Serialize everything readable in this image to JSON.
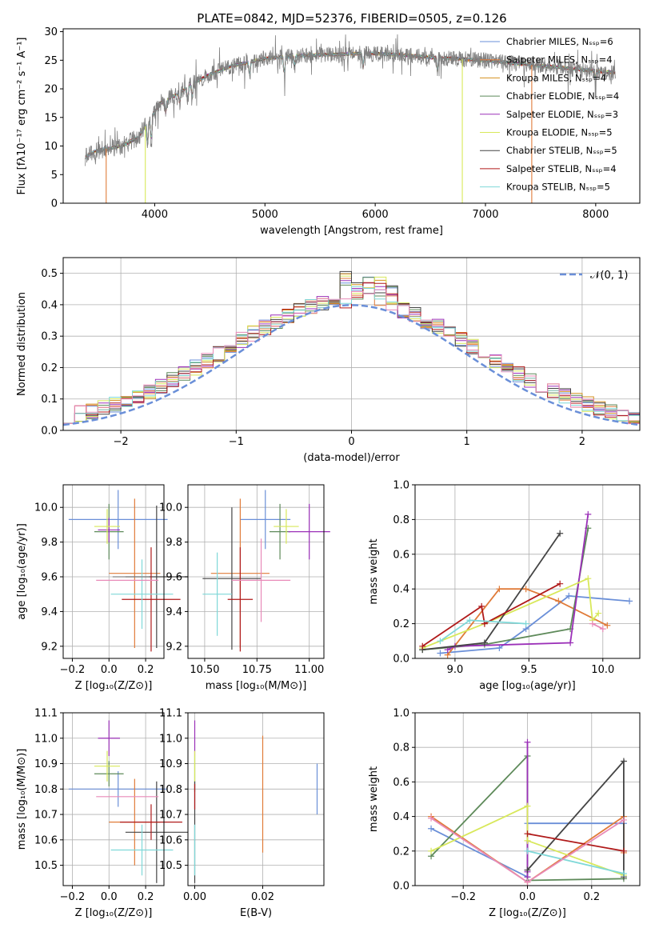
{
  "figure": {
    "title": "PLATE=0842, MJD=52376, FIBERID=0505, z=0.126"
  },
  "chart_data": [
    {
      "id": "spectrum",
      "type": "line",
      "xlabel": "wavelength [Angstrom, rest frame]",
      "ylabel": "Flux [fλ10⁻¹⁷ erg cm⁻² s⁻¹ A⁻¹]",
      "xlim": [
        3170,
        8400
      ],
      "ylim": [
        0,
        30.5
      ],
      "xticks": [
        4000,
        5000,
        6000,
        7000,
        8000
      ],
      "yticks": [
        0,
        5,
        10,
        15,
        20,
        25,
        30
      ],
      "grid": false,
      "legend": "upper right",
      "series": [
        {
          "name": "Chabrier MILES, Nₛₛₚ=6",
          "color": "#6a8fd8"
        },
        {
          "name": "Salpeter MILES, Nₛₛₚ=4",
          "color": "#e07b39"
        },
        {
          "name": "Kroupa MILES, Nₛₛₚ=4",
          "color": "#d4901e"
        },
        {
          "name": "Chabrier ELODIE, Nₛₛₚ=4",
          "color": "#5e8a5a"
        },
        {
          "name": "Salpeter ELODIE, Nₛₛₚ=3",
          "color": "#9b30b8"
        },
        {
          "name": "Kroupa ELODIE, Nₛₛₚ=5",
          "color": "#d8e85a"
        },
        {
          "name": "Chabrier STELIB, Nₛₛₚ=5",
          "color": "#444444"
        },
        {
          "name": "Salpeter STELIB, Nₛₛₚ=4",
          "color": "#b01a1a"
        },
        {
          "name": "Kroupa STELIB, Nₛₛₚ=5",
          "color": "#7fd8d8"
        }
      ],
      "data_color": "#808080",
      "continuum": [
        [
          3370,
          8
        ],
        [
          3450,
          9
        ],
        [
          3550,
          9.5
        ],
        [
          3700,
          10
        ],
        [
          3850,
          11.5
        ],
        [
          3950,
          14.5
        ],
        [
          4050,
          17.5
        ],
        [
          4200,
          19
        ],
        [
          4350,
          21
        ],
        [
          4500,
          22.5
        ],
        [
          4700,
          24
        ],
        [
          5000,
          25.3
        ],
        [
          5300,
          25.8
        ],
        [
          5600,
          26
        ],
        [
          5900,
          26.2
        ],
        [
          6200,
          26
        ],
        [
          6500,
          25.5
        ],
        [
          6800,
          25.2
        ],
        [
          7100,
          24.8
        ],
        [
          7400,
          24.2
        ],
        [
          7700,
          23.7
        ],
        [
          8000,
          23.1
        ],
        [
          8180,
          22.8
        ]
      ],
      "absorption_lines": [
        [
          3934,
          5
        ],
        [
          3969,
          5.5
        ],
        [
          4102,
          3
        ],
        [
          4227,
          2
        ],
        [
          4300,
          3
        ],
        [
          4340,
          3
        ],
        [
          4861,
          3
        ],
        [
          5175,
          4
        ],
        [
          5270,
          2
        ],
        [
          5890,
          3
        ],
        [
          6563,
          3
        ],
        [
          8000,
          1.5
        ]
      ],
      "drop_lines": [
        [
          3560,
          "#e07b39"
        ],
        [
          3915,
          "#d8e85a"
        ],
        [
          6790,
          "#d8e85a"
        ],
        [
          7420,
          "#e07b39"
        ]
      ]
    },
    {
      "id": "residual-histogram",
      "type": "line",
      "xlabel": "(data-model)/error",
      "ylabel": "Normed distribution",
      "xlim": [
        -2.5,
        2.5
      ],
      "ylim": [
        0,
        0.55
      ],
      "xticks": [
        -2,
        -1,
        0,
        1,
        2
      ],
      "yticks": [
        0.0,
        0.1,
        0.2,
        0.3,
        0.4,
        0.5
      ],
      "grid": true,
      "legend": "upper right",
      "legend_label": "𝒩(0, 1)",
      "reference_color": "#6a8fd8",
      "bin_width": 0.1
    },
    {
      "id": "age-vs-metallicity",
      "type": "scatter",
      "xlabel": "Z [log₁₀(Z/Z⊙)]",
      "ylabel": "age  [log₁₀(age/yr)]",
      "xlim": [
        -0.25,
        0.3
      ],
      "ylim": [
        9.13,
        10.13
      ],
      "xticks": [
        -0.2,
        0.0,
        0.2
      ],
      "yticks": [
        9.2,
        9.4,
        9.6,
        9.8,
        10.0
      ],
      "grid": true,
      "points": [
        {
          "x": 0.05,
          "y": 9.93,
          "xerr": 0.27,
          "yerr": 0.17,
          "color": "#6a8fd8"
        },
        {
          "x": 0.14,
          "y": 9.62,
          "xerr": 0.14,
          "yerr": 0.43,
          "color": "#e07b39"
        },
        {
          "x": 0.0,
          "y": 9.86,
          "xerr": 0.08,
          "yerr": 0.16,
          "color": "#5e8a5a"
        },
        {
          "x": 0.0,
          "y": 9.87,
          "xerr": 0.06,
          "yerr": 0.07,
          "color": "#9b30b8"
        },
        {
          "x": -0.01,
          "y": 9.89,
          "xerr": 0.07,
          "yerr": 0.1,
          "color": "#d8e85a"
        },
        {
          "x": 0.26,
          "y": 9.6,
          "xerr": 0.17,
          "yerr": 0.41,
          "color": "#444444"
        },
        {
          "x": 0.23,
          "y": 9.47,
          "xerr": 0.16,
          "yerr": 0.3,
          "color": "#b01a1a"
        },
        {
          "x": 0.18,
          "y": 9.5,
          "xerr": 0.17,
          "yerr": 0.2,
          "color": "#7fd8d8"
        },
        {
          "x": 0.1,
          "y": 9.58,
          "xerr": 0.17,
          "yerr": 0.0,
          "color": "#e88ab8"
        },
        {
          "x": 0.12,
          "y": 9.6,
          "xerr": 0.1,
          "yerr": 0.0,
          "color": "#888888"
        }
      ]
    },
    {
      "id": "age-vs-mass",
      "type": "scatter",
      "xlabel": "mass [log₁₀(M/M⊙)]",
      "ylabel": "",
      "xlim": [
        10.42,
        11.07
      ],
      "ylim": [
        9.13,
        10.13
      ],
      "xticks": [
        10.5,
        10.75,
        11.0
      ],
      "yticks": [
        9.2,
        9.4,
        9.6,
        9.8,
        10.0
      ],
      "grid": true,
      "points": [
        {
          "x": 10.79,
          "y": 9.93,
          "xerr": 0.12,
          "yerr": 0.17,
          "color": "#6a8fd8"
        },
        {
          "x": 10.67,
          "y": 9.62,
          "xerr": 0.14,
          "yerr": 0.43,
          "color": "#e07b39"
        },
        {
          "x": 10.86,
          "y": 9.86,
          "xerr": 0.05,
          "yerr": 0.16,
          "color": "#5e8a5a"
        },
        {
          "x": 11.0,
          "y": 9.86,
          "xerr": 0.1,
          "yerr": 0.16,
          "color": "#9b30b8"
        },
        {
          "x": 10.89,
          "y": 9.89,
          "xerr": 0.06,
          "yerr": 0.1,
          "color": "#d8e85a"
        },
        {
          "x": 10.63,
          "y": 9.59,
          "xerr": 0.14,
          "yerr": 0.41,
          "color": "#444444"
        },
        {
          "x": 10.67,
          "y": 9.47,
          "xerr": 0.06,
          "yerr": 0.3,
          "color": "#b01a1a"
        },
        {
          "x": 10.56,
          "y": 9.5,
          "xerr": 0.07,
          "yerr": 0.24,
          "color": "#7fd8d8"
        },
        {
          "x": 10.77,
          "y": 9.58,
          "xerr": 0.14,
          "yerr": 0.24,
          "color": "#e88ab8"
        }
      ]
    },
    {
      "id": "mass-weight-vs-age",
      "type": "line",
      "xlabel": "age  [log₁₀(age/yr)]",
      "ylabel": "mass weight",
      "xlim": [
        8.73,
        10.25
      ],
      "ylim": [
        0,
        1.0
      ],
      "xticks": [
        9.0,
        9.5,
        10.0
      ],
      "yticks": [
        0.0,
        0.2,
        0.4,
        0.6,
        0.8,
        1.0
      ],
      "grid": true,
      "series": [
        {
          "color": "#6a8fd8",
          "points": [
            [
              8.9,
              0.03
            ],
            [
              9.3,
              0.06
            ],
            [
              9.48,
              0.17
            ],
            [
              9.77,
              0.36
            ],
            [
              10.18,
              0.33
            ]
          ]
        },
        {
          "color": "#e07b39",
          "points": [
            [
              8.95,
              0.02
            ],
            [
              9.3,
              0.4
            ],
            [
              9.48,
              0.4
            ],
            [
              9.7,
              0.33
            ],
            [
              10.03,
              0.19
            ]
          ]
        },
        {
          "color": "#5e8a5a",
          "points": [
            [
              8.78,
              0.05
            ],
            [
              9.2,
              0.08
            ],
            [
              9.78,
              0.17
            ],
            [
              9.9,
              0.75
            ]
          ]
        },
        {
          "color": "#9b30b8",
          "points": [
            [
              8.95,
              0.05
            ],
            [
              9.0,
              0.07
            ],
            [
              9.78,
              0.09
            ],
            [
              9.9,
              0.83
            ]
          ]
        },
        {
          "color": "#d8e85a",
          "points": [
            [
              8.78,
              0.06
            ],
            [
              9.2,
              0.2
            ],
            [
              9.9,
              0.46
            ],
            [
              9.93,
              0.22
            ],
            [
              9.97,
              0.26
            ]
          ]
        },
        {
          "color": "#444444",
          "points": [
            [
              8.78,
              0.05
            ],
            [
              9.2,
              0.09
            ],
            [
              9.71,
              0.72
            ]
          ]
        },
        {
          "color": "#b01a1a",
          "points": [
            [
              8.78,
              0.07
            ],
            [
              9.18,
              0.3
            ],
            [
              9.2,
              0.2
            ],
            [
              9.71,
              0.43
            ]
          ]
        },
        {
          "color": "#7fd8d8",
          "points": [
            [
              8.9,
              0.1
            ],
            [
              9.1,
              0.22
            ],
            [
              9.48,
              0.2
            ]
          ]
        },
        {
          "color": "#e88ab8",
          "points": [
            [
              9.93,
              0.2
            ],
            [
              10.0,
              0.17
            ]
          ]
        }
      ]
    },
    {
      "id": "mass-vs-metallicity",
      "type": "scatter",
      "xlabel": "Z [log₁₀(Z/Z⊙)]",
      "ylabel": "mass [log₁₀(M/M⊙)]",
      "xlim": [
        -0.25,
        0.3
      ],
      "ylim": [
        10.42,
        11.1
      ],
      "xticks": [
        -0.2,
        0.0,
        0.2
      ],
      "yticks": [
        10.5,
        10.6,
        10.7,
        10.8,
        10.9,
        11.0,
        11.1
      ],
      "grid": true,
      "points": [
        {
          "x": 0.05,
          "y": 10.8,
          "xerr": 0.27,
          "yerr": 0.07,
          "color": "#6a8fd8"
        },
        {
          "x": 0.14,
          "y": 10.67,
          "xerr": 0.14,
          "yerr": 0.17,
          "color": "#e07b39"
        },
        {
          "x": 0.0,
          "y": 10.86,
          "xerr": 0.08,
          "yerr": 0.05,
          "color": "#5e8a5a"
        },
        {
          "x": 0.0,
          "y": 11.0,
          "xerr": 0.06,
          "yerr": 0.07,
          "color": "#9b30b8"
        },
        {
          "x": -0.01,
          "y": 10.89,
          "xerr": 0.07,
          "yerr": 0.06,
          "color": "#d8e85a"
        },
        {
          "x": 0.26,
          "y": 10.63,
          "xerr": 0.17,
          "yerr": 0.2,
          "color": "#444444"
        },
        {
          "x": 0.23,
          "y": 10.67,
          "xerr": 0.17,
          "yerr": 0.07,
          "color": "#b01a1a"
        },
        {
          "x": 0.18,
          "y": 10.56,
          "xerr": 0.17,
          "yerr": 0.1,
          "color": "#7fd8d8"
        },
        {
          "x": 0.1,
          "y": 10.77,
          "xerr": 0.17,
          "yerr": 0.0,
          "color": "#e88ab8"
        }
      ]
    },
    {
      "id": "mass-vs-ebv",
      "type": "scatter",
      "xlabel": "E(B-V)",
      "ylabel": "",
      "xlim": [
        -0.002,
        0.038
      ],
      "ylim": [
        10.42,
        11.1
      ],
      "xticks": [
        0.0,
        0.02
      ],
      "yticks": [
        10.5,
        10.6,
        10.7,
        10.8,
        10.9,
        11.0,
        11.1
      ],
      "grid": true,
      "points": [
        {
          "x": 0.036,
          "y": 10.8,
          "xerr": 0,
          "yerr": 0.1,
          "color": "#6a8fd8"
        },
        {
          "x": 0.02,
          "y": 10.78,
          "xerr": 0,
          "yerr": 0.23,
          "color": "#e07b39"
        },
        {
          "x": 0.0,
          "y": 10.86,
          "xerr": 0,
          "yerr": 0.07,
          "color": "#5e8a5a"
        },
        {
          "x": 0.0,
          "y": 11.0,
          "xerr": 0,
          "yerr": 0.07,
          "color": "#9b30b8"
        },
        {
          "x": 0.0,
          "y": 10.89,
          "xerr": 0,
          "yerr": 0.06,
          "color": "#d8e85a"
        },
        {
          "x": 0.0,
          "y": 10.63,
          "xerr": 0,
          "yerr": 0.2,
          "color": "#444444"
        },
        {
          "x": 0.0,
          "y": 10.77,
          "xerr": 0,
          "yerr": 0.05,
          "color": "#b01a1a"
        },
        {
          "x": 0.0,
          "y": 10.56,
          "xerr": 0,
          "yerr": 0.1,
          "color": "#7fd8d8"
        }
      ]
    },
    {
      "id": "mass-weight-vs-metallicity",
      "type": "line",
      "xlabel": "Z [log₁₀(Z/Z⊙)]",
      "ylabel": "mass weight",
      "xlim": [
        -0.35,
        0.35
      ],
      "ylim": [
        0,
        1.0
      ],
      "xticks": [
        -0.2,
        0.0,
        0.2
      ],
      "yticks": [
        0.0,
        0.2,
        0.4,
        0.6,
        0.8,
        1.0
      ],
      "grid": true,
      "series": [
        {
          "color": "#6a8fd8",
          "points": [
            [
              -0.3,
              0.33
            ],
            [
              0.0,
              0.05
            ],
            [
              0.0,
              0.36
            ],
            [
              0.3,
              0.36
            ]
          ]
        },
        {
          "color": "#e07b39",
          "points": [
            [
              -0.3,
              0.4
            ],
            [
              0.0,
              0.02
            ],
            [
              0.3,
              0.4
            ],
            [
              0.3,
              0.19
            ]
          ]
        },
        {
          "color": "#5e8a5a",
          "points": [
            [
              -0.3,
              0.17
            ],
            [
              0.0,
              0.75
            ],
            [
              0.0,
              0.03
            ],
            [
              0.3,
              0.04
            ]
          ]
        },
        {
          "color": "#9b30b8",
          "points": [
            [
              0.0,
              0.83
            ],
            [
              0.0,
              0.08
            ],
            [
              0.0,
              0.05
            ]
          ]
        },
        {
          "color": "#d8e85a",
          "points": [
            [
              -0.3,
              0.2
            ],
            [
              0.0,
              0.46
            ],
            [
              0.0,
              0.26
            ],
            [
              0.3,
              0.06
            ]
          ]
        },
        {
          "color": "#444444",
          "points": [
            [
              0.0,
              0.09
            ],
            [
              0.3,
              0.72
            ],
            [
              0.3,
              0.05
            ]
          ]
        },
        {
          "color": "#b01a1a",
          "points": [
            [
              0.0,
              0.3
            ],
            [
              0.3,
              0.2
            ]
          ]
        },
        {
          "color": "#7fd8d8",
          "points": [
            [
              0.0,
              0.2
            ],
            [
              0.3,
              0.07
            ]
          ]
        },
        {
          "color": "#e88ab8",
          "points": [
            [
              -0.3,
              0.39
            ],
            [
              0.0,
              0.02
            ],
            [
              0.3,
              0.38
            ]
          ]
        }
      ]
    }
  ]
}
